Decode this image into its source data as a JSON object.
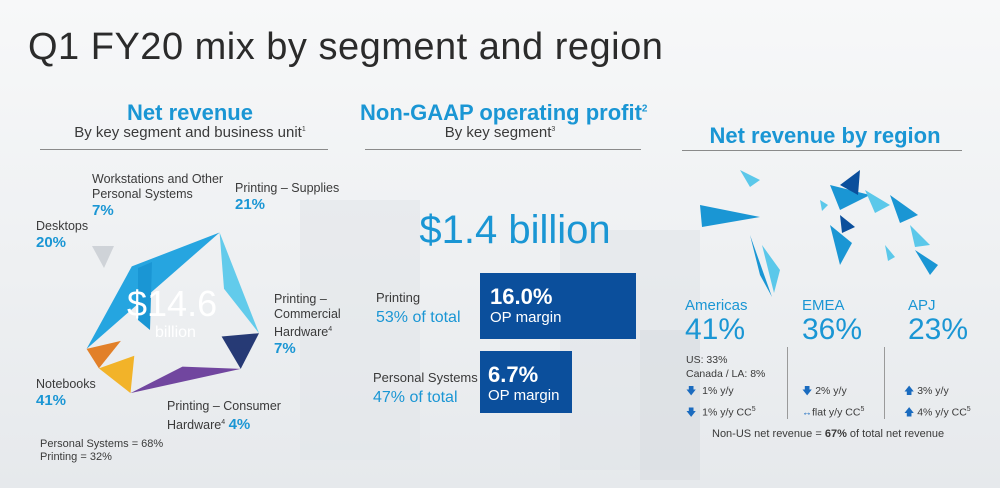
{
  "title": "Q1 FY20 mix by segment and region",
  "left": {
    "heading": "Net revenue",
    "subheading": "By key segment and business unit",
    "sub_footnote": "1",
    "center_value": "$14.6",
    "center_unit": "billion",
    "segments": [
      {
        "name": "Workstations and Other Personal Systems",
        "line1": "Workstations and Other",
        "line2": "Personal Systems",
        "pct": "7%"
      },
      {
        "name": "Printing – Supplies",
        "line1": "Printing – Supplies",
        "pct": "21%"
      },
      {
        "name": "Desktops",
        "line1": "Desktops",
        "pct": "20%"
      },
      {
        "name": "Printing – Commercial Hardware",
        "line1": "Printing –",
        "line2": "Commercial",
        "line3": "Hardware",
        "footnote": "4",
        "pct": "7%"
      },
      {
        "name": "Notebooks",
        "line1": "Notebooks",
        "pct": "41%"
      },
      {
        "name": "Printing – Consumer Hardware",
        "line1": "Printing – Consumer",
        "line2": "Hardware",
        "footnote": "4",
        "pct": "4%"
      }
    ],
    "totals": [
      "Personal Systems = 68%",
      "Printing = 32%"
    ]
  },
  "middle": {
    "heading": "Non-GAAP operating profit",
    "heading_footnote": "2",
    "subheading": "By key segment",
    "sub_footnote": "3",
    "total": "$1.4 billion",
    "units": [
      {
        "name": "Printing",
        "share": "53% of total",
        "margin": "16.0%",
        "margin_label": "OP margin"
      },
      {
        "name": "Personal Systems",
        "share": "47% of total",
        "margin": "6.7%",
        "margin_label": "OP margin"
      }
    ]
  },
  "right": {
    "heading": "Net revenue by region",
    "regions": [
      {
        "name": "Americas",
        "pct": "41%",
        "detail": [
          "US: 33%",
          "Canada / LA: 8%"
        ],
        "yy": "1% y/y",
        "yy_dir": "down",
        "cc": "1% y/y CC",
        "cc_dir": "down"
      },
      {
        "name": "EMEA",
        "pct": "36%",
        "detail": [],
        "yy": "2% y/y",
        "yy_dir": "down",
        "cc": "flat y/y CC",
        "cc_dir": "flat"
      },
      {
        "name": "APJ",
        "pct": "23%",
        "detail": [],
        "yy": "3% y/y",
        "yy_dir": "up",
        "cc": "4% y/y CC",
        "cc_dir": "up"
      }
    ],
    "cc_footnote": "5",
    "note_prefix": "Non-US net revenue = ",
    "note_value": "67%",
    "note_suffix": " of total net revenue"
  },
  "chart_data": {
    "type": "pie",
    "title": "Net revenue",
    "categories": [
      "Notebooks",
      "Desktops",
      "Workstations and Other Personal Systems",
      "Printing – Supplies",
      "Printing – Commercial Hardware",
      "Printing – Consumer Hardware"
    ],
    "values": [
      41,
      20,
      7,
      21,
      7,
      4
    ],
    "colors": [
      "#1aa0de",
      "#5bc8ea",
      "#1b2f6e",
      "#6a3d9a",
      "#f2b01e",
      "#e27a1e"
    ]
  }
}
